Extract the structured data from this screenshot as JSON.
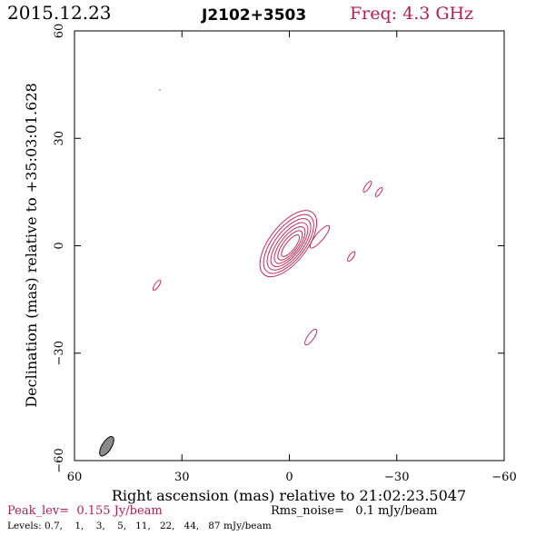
{
  "header": {
    "date": "2015.12.23",
    "source": "J2102+3503",
    "freq": "Freq: 4.3 GHz"
  },
  "footer": {
    "peak": "Peak_lev=  0.155 Jy/beam",
    "rms": "Rms_noise=   0.1 mJy/beam",
    "levels": "Levels: 0.7,    1,    3,    5,   11,   22,   44,   87 mJy/beam"
  },
  "colors": {
    "contour": "#c0305a",
    "peak_text": "#b02050",
    "beam_fill": "#8a8a8a",
    "axis": "#000000"
  },
  "chart_data": {
    "type": "contour",
    "xlabel": "Right ascension (mas) relative to 21:02:23.5047",
    "ylabel": "Declination (mas) relative to +35:03:01.628",
    "xlim": [
      60,
      -60
    ],
    "ylim": [
      -60,
      60
    ],
    "xticks": [
      60,
      30,
      0,
      -30,
      -60
    ],
    "yticks": [
      60,
      30,
      0,
      -30,
      -60
    ],
    "xtick_labels": [
      "60",
      "30",
      "0",
      "−30",
      "−60"
    ],
    "ytick_labels": [
      "60",
      "30",
      "0",
      "−30",
      "−60"
    ],
    "core": {
      "x": 0,
      "y": 0,
      "pa_deg": 38,
      "contours": [
        {
          "dx": 0.3,
          "dy": 0.6,
          "major": 11.0,
          "minor": 5.2
        },
        {
          "dx": 0.2,
          "dy": 0.5,
          "major": 9.8,
          "minor": 4.5
        },
        {
          "dx": 0.1,
          "dy": 0.4,
          "major": 8.6,
          "minor": 3.8
        },
        {
          "dx": 0.0,
          "dy": 0.3,
          "major": 7.4,
          "minor": 3.1
        },
        {
          "dx": -0.1,
          "dy": 0.2,
          "major": 6.2,
          "minor": 2.5
        },
        {
          "dx": -0.2,
          "dy": 0.1,
          "major": 5.0,
          "minor": 1.9
        },
        {
          "dx": -0.3,
          "dy": 0.0,
          "major": 3.7,
          "minor": 1.3
        }
      ]
    },
    "components": [
      {
        "x": -8.5,
        "y": 2.5,
        "major": 4.0,
        "minor": 1.1,
        "pa_deg": 40
      },
      {
        "x": -17.3,
        "y": -3.0,
        "major": 1.6,
        "minor": 0.6,
        "pa_deg": 35
      },
      {
        "x": -21.8,
        "y": 16.5,
        "major": 1.8,
        "minor": 0.6,
        "pa_deg": 35
      },
      {
        "x": -25.0,
        "y": 15.0,
        "major": 1.5,
        "minor": 0.55,
        "pa_deg": 35
      },
      {
        "x": 37.0,
        "y": -11.0,
        "major": 1.7,
        "minor": 0.6,
        "pa_deg": 35
      },
      {
        "x": -6.0,
        "y": -25.5,
        "major": 2.6,
        "minor": 0.9,
        "pa_deg": 35
      }
    ],
    "beam": {
      "x": 51.0,
      "y": -56.0,
      "major": 3.1,
      "minor": 1.3,
      "pa_deg": 32
    }
  }
}
